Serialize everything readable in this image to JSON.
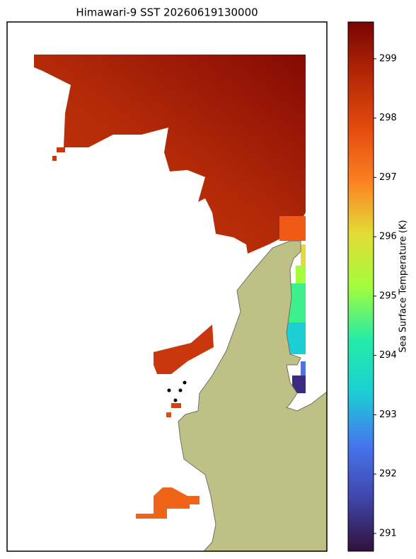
{
  "title": "Himawari-9 SST 20260619130000",
  "colorbar": {
    "label": "Sea Surface Temperature (K)",
    "colormap": "turbo",
    "lim": [
      290.7,
      299.62
    ],
    "ticks": [
      291,
      292,
      293,
      294,
      295,
      296,
      297,
      298,
      299
    ]
  }
}
